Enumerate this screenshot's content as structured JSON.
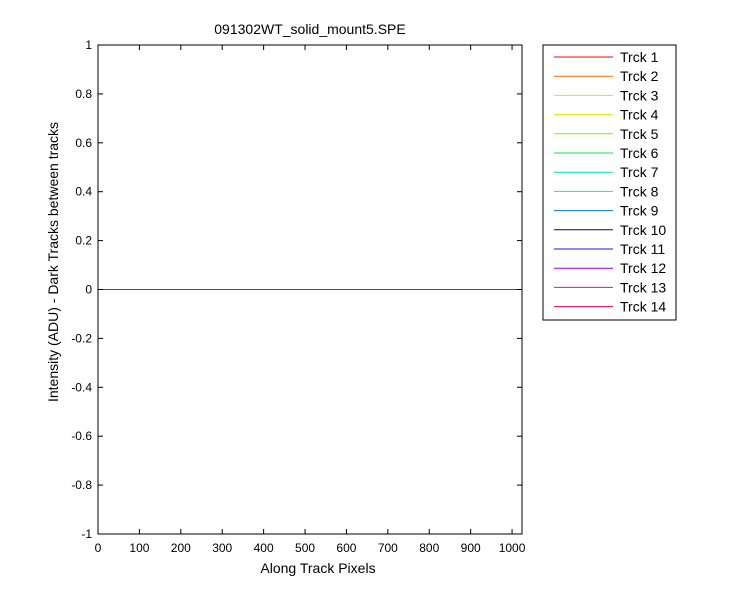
{
  "chart_data": {
    "type": "line",
    "title": "091302WT_solid_mount5.SPE",
    "xlabel": "Along Track Pixels",
    "ylabel": "Intensity (ADU) - Dark Tracks between tracks",
    "xlim": [
      0,
      1024
    ],
    "ylim": [
      -1,
      1
    ],
    "xticks": [
      0,
      100,
      200,
      300,
      400,
      500,
      600,
      700,
      800,
      900,
      1000
    ],
    "xtick_labels": [
      "0",
      "100",
      "200",
      "300",
      "400",
      "500",
      "600",
      "700",
      "800",
      "900",
      "1000"
    ],
    "yticks": [
      1,
      0.8,
      0.6,
      0.4,
      0.2,
      0,
      -0.2,
      -0.4,
      -0.6,
      -0.8,
      -1
    ],
    "ytick_labels": [
      "1",
      "0.8",
      "0.6",
      "0.4",
      "0.2",
      "0",
      "-0.2",
      "-0.4",
      "-0.6",
      "-0.8",
      "-1"
    ],
    "grid": false,
    "legend_position": "outside-right-top",
    "series": [
      {
        "name": "Trck 1",
        "color": "#ff0000",
        "x": [
          0,
          1024
        ],
        "y": [
          0,
          0
        ]
      },
      {
        "name": "Trck 2",
        "color": "#ff6a00",
        "x": [
          0,
          1024
        ],
        "y": [
          0,
          0
        ]
      },
      {
        "name": "Trck 3",
        "color": "#ffd200",
        "x": [
          0,
          1024
        ],
        "y": [
          0,
          0
        ]
      },
      {
        "name": "Trck 4",
        "color": "#d7f000",
        "x": [
          0,
          1024
        ],
        "y": [
          0,
          0
        ]
      },
      {
        "name": "Trck 5",
        "color": "#7ff000",
        "x": [
          0,
          1024
        ],
        "y": [
          0,
          0
        ]
      },
      {
        "name": "Trck 6",
        "color": "#14e646",
        "x": [
          0,
          1024
        ],
        "y": [
          0,
          0
        ]
      },
      {
        "name": "Trck 7",
        "color": "#00e6a0",
        "x": [
          0,
          1024
        ],
        "y": [
          0,
          0
        ]
      },
      {
        "name": "Trck 8",
        "color": "#00e6e6",
        "x": [
          0,
          1024
        ],
        "y": [
          0,
          0
        ]
      },
      {
        "name": "Trck 9",
        "color": "#0078d2",
        "x": [
          0,
          1024
        ],
        "y": [
          0,
          0
        ]
      },
      {
        "name": "Trck 10",
        "color": "#000a64",
        "x": [
          0,
          1024
        ],
        "y": [
          0,
          0
        ]
      },
      {
        "name": "Trck 11",
        "color": "#3c00dc",
        "x": [
          0,
          1024
        ],
        "y": [
          0,
          0
        ]
      },
      {
        "name": "Trck 12",
        "color": "#9600d2",
        "x": [
          0,
          1024
        ],
        "y": [
          0,
          0
        ]
      },
      {
        "name": "Trck 13",
        "color": "#e600e6",
        "x": [
          0,
          1024
        ],
        "y": [
          0,
          0
        ]
      },
      {
        "name": "Trck 14",
        "color": "#e6005a",
        "x": [
          0,
          1024
        ],
        "y": [
          0,
          0
        ]
      }
    ]
  }
}
